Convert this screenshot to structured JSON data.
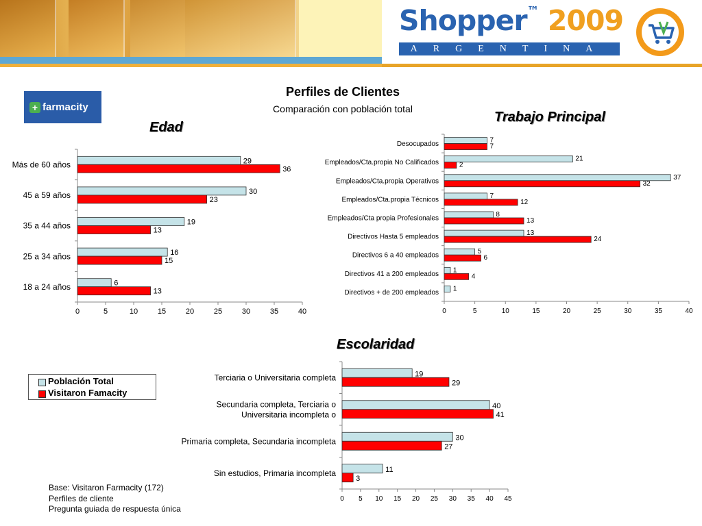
{
  "header": {
    "brand_name": "Shopper",
    "brand_tm": "™",
    "brand_year": "2009",
    "brand_country": "ARGENTINA",
    "cart_icon": "shopping-cart-icon"
  },
  "client_logo": {
    "text": "farmacity",
    "icon": "pharmacy-cross-icon"
  },
  "page": {
    "title": "Perfiles de Clientes",
    "subtitle": "Comparación con población total"
  },
  "legend": {
    "series": [
      {
        "name": "Población Total",
        "color": "#c5e3e8"
      },
      {
        "name": "Visitaron Famacity",
        "color": "#ff0000"
      }
    ]
  },
  "notes": [
    "Base: Visitaron Farmacity (172)",
    "Perfiles de cliente",
    "Pregunta guiada de respuesta única"
  ],
  "colors": {
    "series_total": "#c5e3e8",
    "series_visit": "#ff0000"
  },
  "chart_data": [
    {
      "id": "edad",
      "type": "bar",
      "orientation": "horizontal",
      "title": "Edad",
      "categories": [
        "Más de 60 años",
        "45 a 59 años",
        "35 a 44 años",
        "25 a 34 años",
        "18 a 24 años"
      ],
      "series": [
        {
          "name": "Población Total",
          "values": [
            29,
            30,
            19,
            16,
            6
          ]
        },
        {
          "name": "Visitaron Famacity",
          "values": [
            36,
            23,
            13,
            15,
            13
          ]
        }
      ],
      "xlim": [
        0,
        40
      ],
      "ticks": [
        0,
        5,
        10,
        15,
        20,
        25,
        30,
        35,
        40
      ]
    },
    {
      "id": "trabajo",
      "type": "bar",
      "orientation": "horizontal",
      "title": "Trabajo Principal",
      "categories": [
        "Desocupados",
        "Empleados/Cta.propia No Calificados",
        "Empleados/Cta.propia Operativos",
        "Empleados/Cta.propia Técnicos",
        "Empleados/Cta propia Profesionales",
        "Directivos Hasta 5 empleados",
        "Directivos 6 a 40 empleados",
        "Directivos 41 a 200 empleados",
        "Directivos + de 200 empleados"
      ],
      "series": [
        {
          "name": "Población Total",
          "values": [
            7,
            21,
            37,
            7,
            8,
            13,
            5,
            1,
            1
          ]
        },
        {
          "name": "Visitaron Famacity",
          "values": [
            7,
            2,
            32,
            12,
            13,
            24,
            6,
            4,
            null
          ]
        }
      ],
      "xlim": [
        0,
        40
      ],
      "ticks": [
        0,
        5,
        10,
        15,
        20,
        25,
        30,
        35,
        40
      ]
    },
    {
      "id": "escolaridad",
      "type": "bar",
      "orientation": "horizontal",
      "title": "Escolaridad",
      "categories": [
        "Terciaria o Universitaria completa",
        "Secundaria completa, Terciaria o\nUniversitaria incompleta o",
        "Primaria completa, Secundaria incompleta",
        "Sin estudios, Primaria incompleta"
      ],
      "series": [
        {
          "name": "Población Total",
          "values": [
            19,
            40,
            30,
            11
          ]
        },
        {
          "name": "Visitaron Famacity",
          "values": [
            29,
            41,
            27,
            3
          ]
        }
      ],
      "xlim": [
        0,
        45
      ],
      "ticks": [
        0,
        5,
        10,
        15,
        20,
        25,
        30,
        35,
        40,
        45
      ]
    }
  ]
}
